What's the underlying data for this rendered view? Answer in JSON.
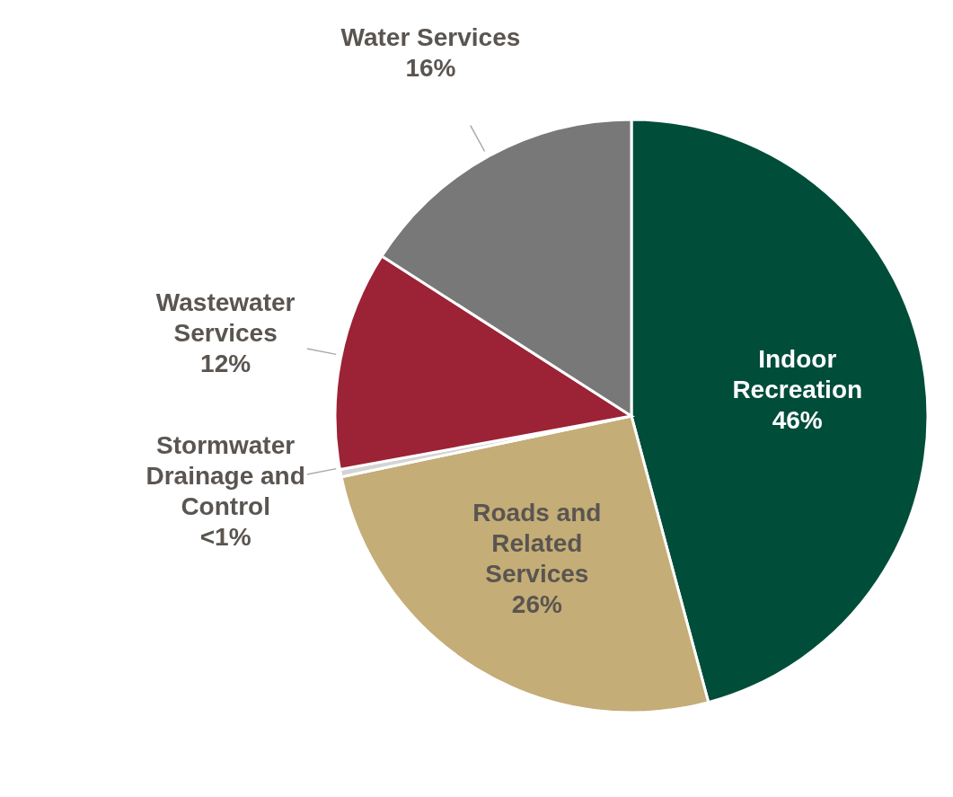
{
  "chart_data": {
    "type": "pie",
    "categories": [
      "Indoor Recreation",
      "Roads and Related Services",
      "Stormwater Drainage and Control",
      "Wastewater Services",
      "Water Services"
    ],
    "values": [
      46,
      26,
      0.4,
      12,
      16
    ],
    "value_labels": [
      "46%",
      "26%",
      "<1%",
      "12%",
      "16%"
    ],
    "colors": [
      "#004d3a",
      "#c4ad77",
      "#d4d4d4",
      "#9b2335",
      "#787878"
    ],
    "legend": false
  }
}
